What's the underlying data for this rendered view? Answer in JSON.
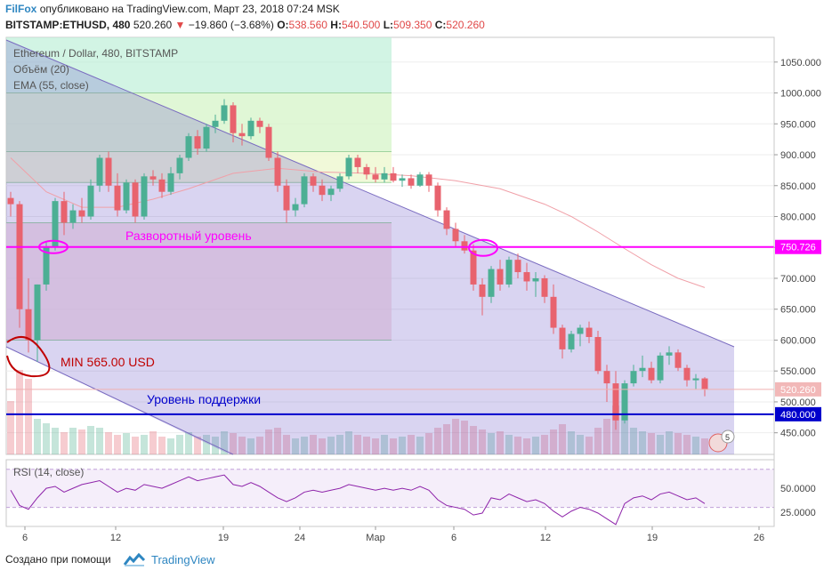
{
  "header": {
    "brand": "FilFox",
    "published": "опубликовано на TradingView.com, Март 23, 2018 07:24 MSK",
    "symbol": "BITSTAMP:ETHUSD, 480",
    "last": "520.260",
    "change": "−19.860 (−3.68%)",
    "o_label": "O:",
    "o": "538.560",
    "h_label": "H:",
    "h": "540.500",
    "l_label": "L:",
    "l": "509.350",
    "c_label": "C:",
    "c": "520.260"
  },
  "legend": {
    "title": "Ethereum / Dollar, 480, BITSTAMP",
    "volume": "Объём (20)",
    "ema": "EMA (55, close)",
    "rsi": "RSI (14, close)"
  },
  "annotations": {
    "reversal": "Разворотный уровень",
    "min": "MIN 565.00 USD",
    "support": "Уровень поддержки"
  },
  "footer": {
    "created": "Создано при помощи",
    "brand": "TradingView"
  },
  "badge": "5",
  "colors": {
    "up": "#4caf94",
    "down": "#e8636e",
    "magenta": "#ff00ff",
    "support": "#0000cc",
    "channel": "rgba(110,90,200,0.26)",
    "axis_price_tag": "#ff00ff"
  },
  "chart_data": {
    "type": "candlestick",
    "symbol": "BITSTAMP:ETHUSD",
    "interval": "480",
    "x_ticks": [
      "6",
      "12",
      "19",
      "24",
      "Мар",
      "6",
      "12",
      "19",
      "26"
    ],
    "y_ticks": [
      450,
      500,
      550,
      600,
      650,
      700,
      750,
      800,
      850,
      900,
      950,
      1000,
      1050
    ],
    "y_tick_labels": [
      "450.000",
      "500.000",
      "550.000",
      "600.000",
      "650.000",
      "700.000",
      "750.000",
      "800.000",
      "850.000",
      "900.000",
      "950.000",
      "1000.000",
      "1050.000"
    ],
    "ylim": [
      415,
      1090
    ],
    "levels": {
      "reversal": 750.726,
      "reversal_label": "750.726",
      "support": 480.0,
      "support_label": "480.000",
      "last": 520.26,
      "last_label": "520.260"
    },
    "candles_ohlc": [
      [
        830,
        840,
        800,
        820
      ],
      [
        820,
        825,
        620,
        650
      ],
      [
        650,
        700,
        580,
        600
      ],
      [
        600,
        690,
        565,
        690
      ],
      [
        690,
        760,
        680,
        750
      ],
      [
        750,
        830,
        745,
        825
      ],
      [
        825,
        840,
        770,
        790
      ],
      [
        790,
        820,
        780,
        810
      ],
      [
        810,
        830,
        790,
        800
      ],
      [
        800,
        860,
        795,
        850
      ],
      [
        850,
        900,
        840,
        895
      ],
      [
        895,
        905,
        840,
        850
      ],
      [
        850,
        870,
        800,
        810
      ],
      [
        810,
        860,
        805,
        855
      ],
      [
        855,
        860,
        790,
        800
      ],
      [
        800,
        870,
        795,
        865
      ],
      [
        865,
        875,
        850,
        860
      ],
      [
        860,
        870,
        830,
        840
      ],
      [
        840,
        880,
        835,
        870
      ],
      [
        870,
        900,
        860,
        895
      ],
      [
        895,
        935,
        890,
        930
      ],
      [
        930,
        940,
        900,
        910
      ],
      [
        910,
        950,
        905,
        945
      ],
      [
        945,
        965,
        935,
        955
      ],
      [
        955,
        990,
        950,
        980
      ],
      [
        980,
        985,
        920,
        935
      ],
      [
        935,
        950,
        915,
        930
      ],
      [
        930,
        960,
        925,
        955
      ],
      [
        955,
        960,
        935,
        945
      ],
      [
        945,
        950,
        890,
        895
      ],
      [
        895,
        905,
        840,
        850
      ],
      [
        850,
        860,
        790,
        810
      ],
      [
        810,
        830,
        800,
        820
      ],
      [
        820,
        870,
        815,
        865
      ],
      [
        865,
        870,
        840,
        850
      ],
      [
        850,
        860,
        825,
        835
      ],
      [
        835,
        850,
        825,
        845
      ],
      [
        845,
        870,
        840,
        865
      ],
      [
        865,
        900,
        860,
        895
      ],
      [
        895,
        900,
        870,
        880
      ],
      [
        880,
        885,
        860,
        868
      ],
      [
        868,
        880,
        855,
        860
      ],
      [
        860,
        880,
        855,
        870
      ],
      [
        870,
        880,
        855,
        858
      ],
      [
        858,
        868,
        848,
        862
      ],
      [
        862,
        868,
        845,
        850
      ],
      [
        850,
        872,
        848,
        868
      ],
      [
        868,
        872,
        840,
        850
      ],
      [
        850,
        855,
        800,
        810
      ],
      [
        810,
        815,
        770,
        780
      ],
      [
        780,
        790,
        750,
        760
      ],
      [
        760,
        770,
        740,
        745
      ],
      [
        745,
        755,
        680,
        690
      ],
      [
        690,
        700,
        640,
        670
      ],
      [
        670,
        720,
        660,
        715
      ],
      [
        715,
        730,
        680,
        690
      ],
      [
        690,
        735,
        685,
        730
      ],
      [
        730,
        740,
        700,
        710
      ],
      [
        710,
        725,
        680,
        695
      ],
      [
        695,
        710,
        670,
        700
      ],
      [
        700,
        705,
        660,
        670
      ],
      [
        670,
        690,
        610,
        620
      ],
      [
        620,
        625,
        570,
        585
      ],
      [
        585,
        615,
        580,
        610
      ],
      [
        610,
        625,
        590,
        620
      ],
      [
        620,
        630,
        595,
        605
      ],
      [
        605,
        615,
        545,
        550
      ],
      [
        550,
        560,
        500,
        530
      ],
      [
        530,
        550,
        455,
        470
      ],
      [
        470,
        535,
        465,
        530
      ],
      [
        530,
        560,
        525,
        550
      ],
      [
        550,
        575,
        540,
        555
      ],
      [
        555,
        565,
        530,
        535
      ],
      [
        535,
        580,
        530,
        575
      ],
      [
        575,
        590,
        560,
        580
      ],
      [
        580,
        585,
        550,
        555
      ],
      [
        555,
        560,
        525,
        535
      ],
      [
        535,
        545,
        520,
        538
      ],
      [
        538,
        540,
        509,
        520
      ]
    ],
    "ema55": [
      [
        0,
        895
      ],
      [
        4,
        840
      ],
      [
        8,
        815
      ],
      [
        12,
        815
      ],
      [
        16,
        828
      ],
      [
        20,
        845
      ],
      [
        25,
        870
      ],
      [
        30,
        878
      ],
      [
        35,
        872
      ],
      [
        40,
        870
      ],
      [
        45,
        866
      ],
      [
        50,
        858
      ],
      [
        55,
        845
      ],
      [
        60,
        820
      ],
      [
        63,
        800
      ],
      [
        66,
        775
      ],
      [
        69,
        748
      ],
      [
        72,
        722
      ],
      [
        75,
        700
      ],
      [
        78,
        685
      ]
    ],
    "rsi": {
      "ylim": [
        10,
        80
      ],
      "ticks": [
        25,
        50
      ],
      "tick_labels": [
        "25.0000",
        "50.0000"
      ],
      "band": [
        30,
        70
      ],
      "values": [
        48,
        32,
        28,
        40,
        50,
        52,
        46,
        50,
        54,
        56,
        58,
        52,
        46,
        50,
        48,
        54,
        52,
        50,
        54,
        58,
        62,
        58,
        60,
        62,
        64,
        54,
        52,
        56,
        52,
        46,
        40,
        36,
        40,
        46,
        48,
        46,
        48,
        50,
        54,
        52,
        50,
        48,
        50,
        48,
        50,
        48,
        52,
        48,
        38,
        32,
        30,
        28,
        22,
        24,
        40,
        38,
        44,
        40,
        36,
        38,
        34,
        26,
        20,
        26,
        30,
        28,
        24,
        18,
        12,
        34,
        40,
        42,
        38,
        44,
        46,
        42,
        38,
        40,
        34
      ]
    },
    "volume": [
      60,
      95,
      85,
      40,
      35,
      30,
      25,
      30,
      28,
      32,
      30,
      25,
      22,
      24,
      20,
      22,
      26,
      20,
      18,
      22,
      25,
      20,
      22,
      20,
      26,
      24,
      20,
      18,
      20,
      28,
      30,
      22,
      18,
      20,
      22,
      18,
      20,
      22,
      26,
      22,
      20,
      18,
      22,
      18,
      20,
      22,
      20,
      24,
      30,
      34,
      40,
      38,
      32,
      28,
      24,
      26,
      22,
      20,
      18,
      20,
      22,
      28,
      34,
      26,
      22,
      20,
      30,
      40,
      55,
      45,
      30,
      26,
      24,
      22,
      26,
      24,
      22,
      20,
      18
    ]
  }
}
